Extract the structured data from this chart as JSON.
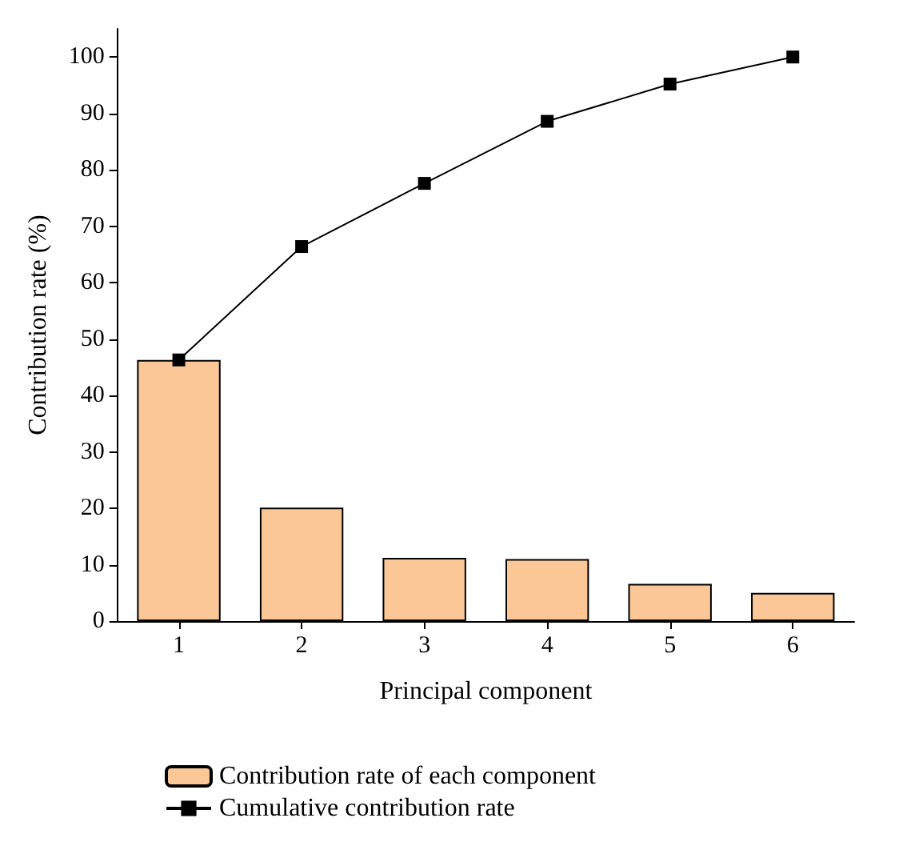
{
  "chart_data": {
    "type": "bar",
    "xlabel": "Principal component",
    "ylabel": "Contribution rate (%)",
    "categories": [
      "1",
      "2",
      "3",
      "4",
      "5",
      "6"
    ],
    "series": [
      {
        "name": "Contribution rate of each component",
        "color": "#fbc797",
        "values": [
          46.3,
          20.1,
          11.2,
          11.0,
          6.6,
          5.0
        ]
      },
      {
        "name": "Cumulative contribution rate",
        "type": "line",
        "color": "#000000",
        "marker": "square",
        "values": [
          46.3,
          66.4,
          77.6,
          88.6,
          95.2,
          100
        ]
      }
    ],
    "ylim": [
      0,
      105
    ],
    "yticks": [
      0,
      10,
      20,
      30,
      40,
      50,
      60,
      70,
      80,
      90,
      100
    ],
    "grid": false,
    "legend": "bottom"
  }
}
